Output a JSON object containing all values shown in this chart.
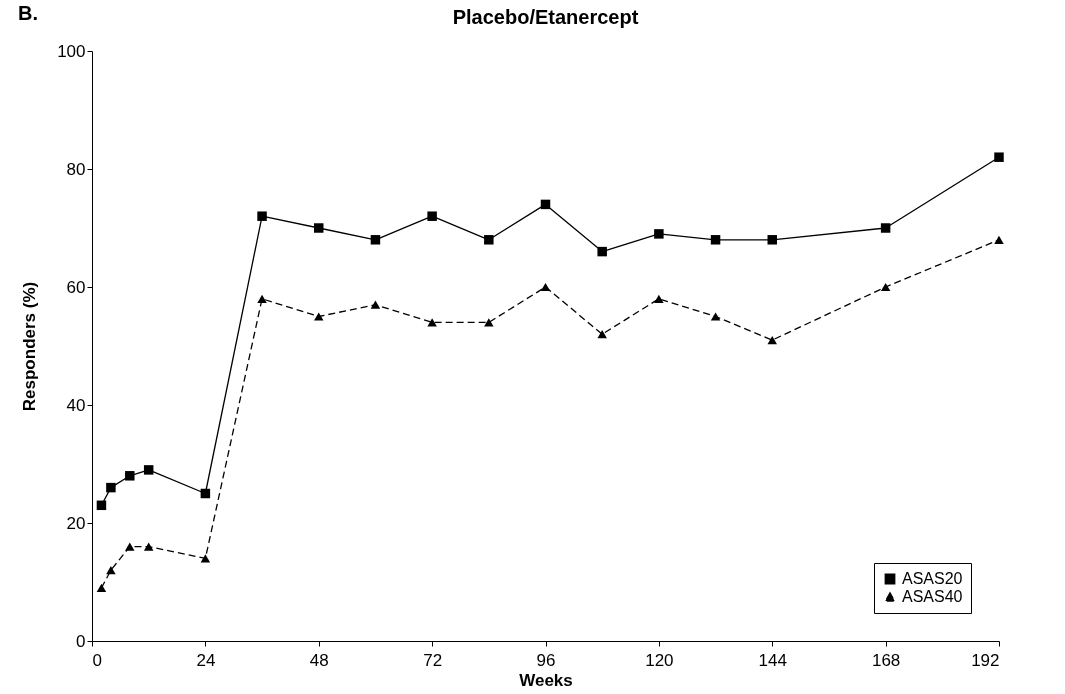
{
  "chart_data": {
    "type": "line",
    "title": "Placebo/Etanercept",
    "xlabel": "Weeks",
    "ylabel": "Responders (%)",
    "annotations": [
      "B."
    ],
    "x": [
      2,
      4,
      8,
      12,
      24,
      36,
      48,
      60,
      72,
      84,
      96,
      108,
      120,
      132,
      144,
      168,
      192
    ],
    "series": [
      {
        "name": "ASAS20",
        "color": "#000000",
        "marker": "square",
        "line_style": "solid",
        "values": [
          23,
          26,
          28,
          29,
          25,
          72,
          70,
          68,
          72,
          68,
          74,
          66,
          69,
          68,
          68,
          70,
          82
        ]
      },
      {
        "name": "ASAS40",
        "color": "#000000",
        "marker": "triangle",
        "line_style": "dashed",
        "values": [
          9,
          12,
          16,
          16,
          14,
          58,
          55,
          57,
          54,
          54,
          60,
          52,
          58,
          55,
          51,
          60,
          68
        ]
      }
    ],
    "xlim": [
      0,
      192
    ],
    "xticks": [
      0,
      24,
      48,
      72,
      96,
      120,
      144,
      168,
      192
    ],
    "ylim": [
      0,
      100
    ],
    "yticks": [
      0,
      20,
      40,
      60,
      80,
      100
    ],
    "grid": false,
    "legend": "bottom right"
  }
}
